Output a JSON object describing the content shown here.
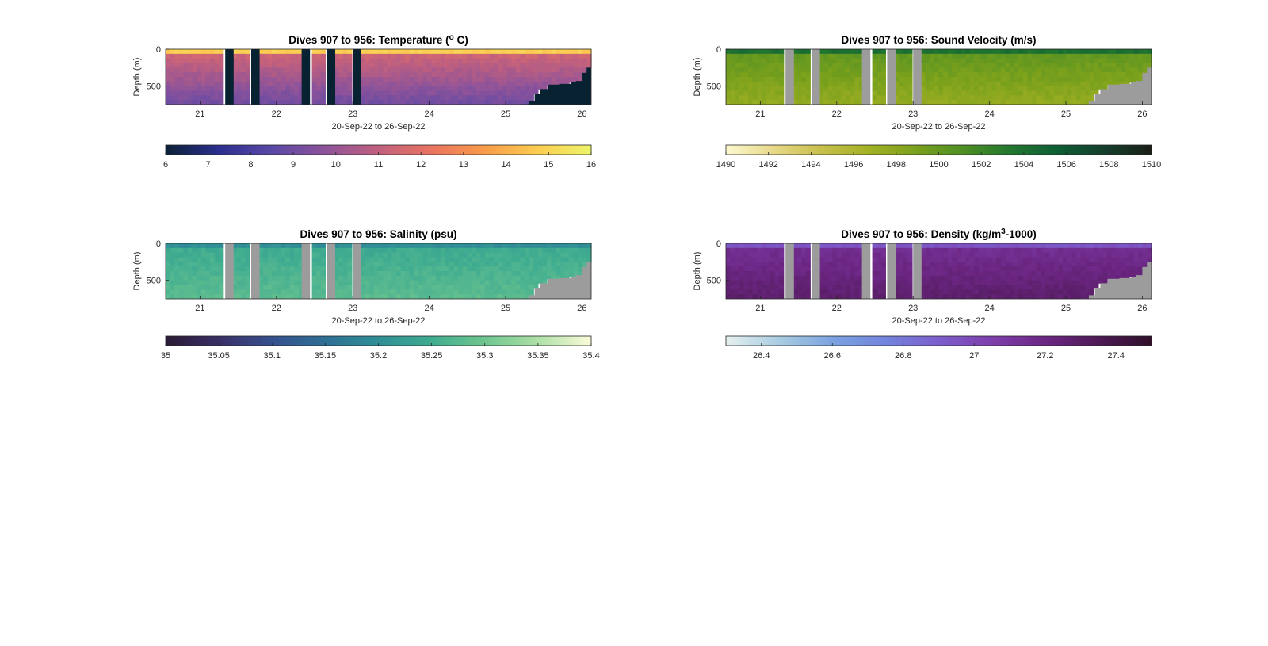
{
  "chart_data": [
    {
      "type": "heatmap",
      "key": "temperature",
      "title": "Dives 907 to 956: Temperature (",
      "title_sup": "o",
      "title_end": " C)",
      "xlabel": "20-Sep-22 to 26-Sep-22",
      "ylabel": "Depth (m)",
      "xticks": [
        "21",
        "22",
        "23",
        "24",
        "25",
        "26"
      ],
      "yticks": [
        "0",
        "500"
      ],
      "xlim": [
        20.55,
        26.12
      ],
      "ylim": [
        0,
        750
      ],
      "colorbar": {
        "min": 6,
        "max": 16,
        "ticks": [
          "6",
          "7",
          "8",
          "9",
          "10",
          "11",
          "12",
          "13",
          "14",
          "15",
          "16"
        ],
        "stops": [
          "#0a2036",
          "#2b2f8f",
          "#5a48a6",
          "#8d539a",
          "#c1607e",
          "#ea7460",
          "#f89b49",
          "#fbcd52",
          "#ecf56a"
        ]
      },
      "surface_value": 14.8,
      "deep_value": 9.0,
      "nodata_color": "#082232"
    },
    {
      "type": "heatmap",
      "key": "sound_velocity",
      "title": "Dives 907 to 956: Sound Velocity (m/s)",
      "xlabel": "20-Sep-22 to 26-Sep-22",
      "ylabel": "Depth (m)",
      "xticks": [
        "21",
        "22",
        "23",
        "24",
        "25",
        "26"
      ],
      "yticks": [
        "0",
        "500"
      ],
      "xlim": [
        20.55,
        26.12
      ],
      "ylim": [
        0,
        750
      ],
      "colorbar": {
        "min": 1490,
        "max": 1510,
        "ticks": [
          "1490",
          "1492",
          "1494",
          "1496",
          "1498",
          "1500",
          "1502",
          "1504",
          "1506",
          "1508",
          "1510"
        ],
        "stops": [
          "#fcf9cf",
          "#e7d98a",
          "#c8c04b",
          "#a3b124",
          "#7ba11c",
          "#4f8f24",
          "#23782f",
          "#0d5e35",
          "#153f2c",
          "#1b1e16"
        ]
      },
      "surface_value": 1504,
      "deep_value": 1497.5,
      "nodata_color": "#9c9c9c"
    },
    {
      "type": "heatmap",
      "key": "salinity",
      "title": "Dives 907 to 956: Salinity (psu)",
      "xlabel": "20-Sep-22 to 26-Sep-22",
      "ylabel": "Depth (m)",
      "xticks": [
        "21",
        "22",
        "23",
        "24",
        "25",
        "26"
      ],
      "yticks": [
        "0",
        "500"
      ],
      "xlim": [
        20.55,
        26.12
      ],
      "ylim": [
        0,
        750
      ],
      "colorbar": {
        "min": 35,
        "max": 35.4,
        "ticks": [
          "35",
          "35.05",
          "35.1",
          "35.15",
          "35.2",
          "35.25",
          "35.3",
          "35.35",
          "35.4"
        ],
        "stops": [
          "#2a1a34",
          "#3a2f66",
          "#35508d",
          "#2f6f95",
          "#2f8f96",
          "#3fac90",
          "#6fc58f",
          "#ade0a7",
          "#fbfbd9"
        ]
      },
      "surface_value": 35.2,
      "deep_value": 35.28,
      "nodata_color": "#9c9c9c"
    },
    {
      "type": "heatmap",
      "key": "density",
      "title": "Dives 907 to 956: Density (kg/m",
      "title_sup": "3",
      "title_end": "-1000)",
      "xlabel": "20-Sep-22 to 26-Sep-22",
      "ylabel": "Depth (m)",
      "xticks": [
        "21",
        "22",
        "23",
        "24",
        "25",
        "26"
      ],
      "yticks": [
        "0",
        "500"
      ],
      "xlim": [
        20.55,
        26.12
      ],
      "ylim": [
        0,
        750
      ],
      "colorbar": {
        "min": 26.3,
        "max": 27.5,
        "ticks": [
          "26.4",
          "26.6",
          "26.8",
          "27",
          "27.2",
          "27.4"
        ],
        "tick_values": [
          26.4,
          26.6,
          26.8,
          27.0,
          27.2,
          27.4
        ],
        "stops": [
          "#e6f0f0",
          "#a8cce0",
          "#7ba3e0",
          "#7384dc",
          "#7c5ecc",
          "#7e3fab",
          "#6c2683",
          "#4e1a56",
          "#2f0f2a"
        ]
      },
      "surface_value": 26.95,
      "deep_value": 27.28,
      "nodata_color": "#9c9c9c"
    }
  ]
}
